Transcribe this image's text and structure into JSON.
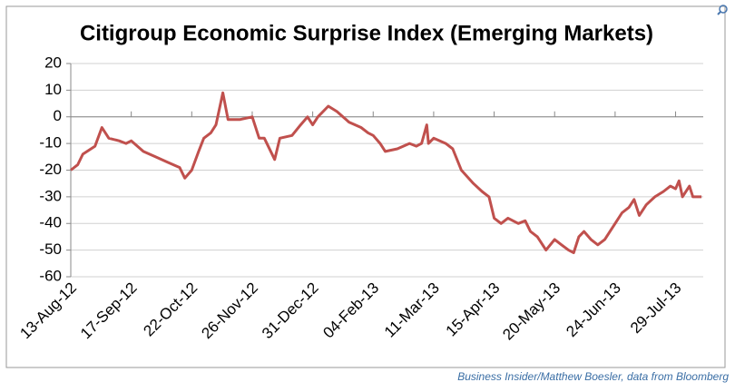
{
  "chart_data": {
    "type": "line",
    "title": "Citigroup Economic Surprise Index (Emerging Markets)",
    "source": "Business Insider/Matthew Boesler, data from Bloomberg",
    "color": "#c0504d",
    "x": [
      "2012-08-13",
      "2012-08-17",
      "2012-08-20",
      "2012-08-27",
      "2012-08-31",
      "2012-09-04",
      "2012-09-10",
      "2012-09-14",
      "2012-09-17",
      "2012-09-24",
      "2012-10-01",
      "2012-10-08",
      "2012-10-15",
      "2012-10-18",
      "2012-10-22",
      "2012-10-26",
      "2012-10-29",
      "2012-11-02",
      "2012-11-05",
      "2012-11-09",
      "2012-11-12",
      "2012-11-19",
      "2012-11-26",
      "2012-11-30",
      "2012-12-03",
      "2012-12-09",
      "2012-12-12",
      "2012-12-19",
      "2012-12-24",
      "2012-12-28",
      "2012-12-31",
      "2013-01-03",
      "2013-01-09",
      "2013-01-14",
      "2013-01-21",
      "2013-01-28",
      "2013-02-01",
      "2013-02-04",
      "2013-02-08",
      "2013-02-11",
      "2013-02-18",
      "2013-02-25",
      "2013-03-01",
      "2013-03-04",
      "2013-03-07",
      "2013-03-08",
      "2013-03-11",
      "2013-03-18",
      "2013-03-22",
      "2013-03-27",
      "2013-04-03",
      "2013-04-08",
      "2013-04-12",
      "2013-04-15",
      "2013-04-19",
      "2013-04-23",
      "2013-04-29",
      "2013-05-03",
      "2013-05-06",
      "2013-05-10",
      "2013-05-15",
      "2013-05-20",
      "2013-05-24",
      "2013-05-28",
      "2013-05-31",
      "2013-06-03",
      "2013-06-06",
      "2013-06-10",
      "2013-06-14",
      "2013-06-18",
      "2013-06-24",
      "2013-06-28",
      "2013-07-02",
      "2013-07-05",
      "2013-07-08",
      "2013-07-12",
      "2013-07-17",
      "2013-07-22",
      "2013-07-26",
      "2013-07-29",
      "2013-07-31",
      "2013-08-02",
      "2013-08-06",
      "2013-08-08",
      "2013-08-13"
    ],
    "values": [
      -20,
      -18,
      -14,
      -11,
      -4,
      -8,
      -9,
      -10,
      -9,
      -13,
      -15,
      -17,
      -19,
      -23,
      -20,
      -13,
      -8,
      -6,
      -3,
      9,
      -1,
      -1,
      0,
      -8,
      -8,
      -16,
      -8,
      -7,
      -3,
      0,
      -3,
      0,
      4,
      2,
      -2,
      -4,
      -6,
      -7,
      -10,
      -13,
      -12,
      -10,
      -11,
      -10,
      -3,
      -10,
      -8,
      -10,
      -12,
      -20,
      -25,
      -28,
      -30,
      -38,
      -40,
      -38,
      -40,
      -39,
      -43,
      -45,
      -50,
      -46,
      -48,
      -50,
      -51,
      -45,
      -43,
      -46,
      -48,
      -46,
      -40,
      -36,
      -34,
      -31,
      -37,
      -33,
      -30,
      -28,
      -26,
      -27,
      -24,
      -30,
      -26,
      -30,
      -30
    ],
    "xlim": [
      "2012-08-13",
      "2013-08-14"
    ],
    "xticks": [
      {
        "value": "2012-08-13",
        "label": "13-Aug-12"
      },
      {
        "value": "2012-09-17",
        "label": "17-Sep-12"
      },
      {
        "value": "2012-10-22",
        "label": "22-Oct-12"
      },
      {
        "value": "2012-11-26",
        "label": "26-Nov-12"
      },
      {
        "value": "2012-12-31",
        "label": "31-Dec-12"
      },
      {
        "value": "2013-02-04",
        "label": "04-Feb-13"
      },
      {
        "value": "2013-03-11",
        "label": "11-Mar-13"
      },
      {
        "value": "2013-04-15",
        "label": "15-Apr-13"
      },
      {
        "value": "2013-05-20",
        "label": "20-May-13"
      },
      {
        "value": "2013-06-24",
        "label": "24-Jun-13"
      },
      {
        "value": "2013-07-29",
        "label": "29-Jul-13"
      }
    ],
    "ylim": [
      -60,
      20
    ],
    "yticks": [
      -60,
      -50,
      -40,
      -30,
      -20,
      -10,
      0,
      10,
      20
    ],
    "grid": true
  }
}
